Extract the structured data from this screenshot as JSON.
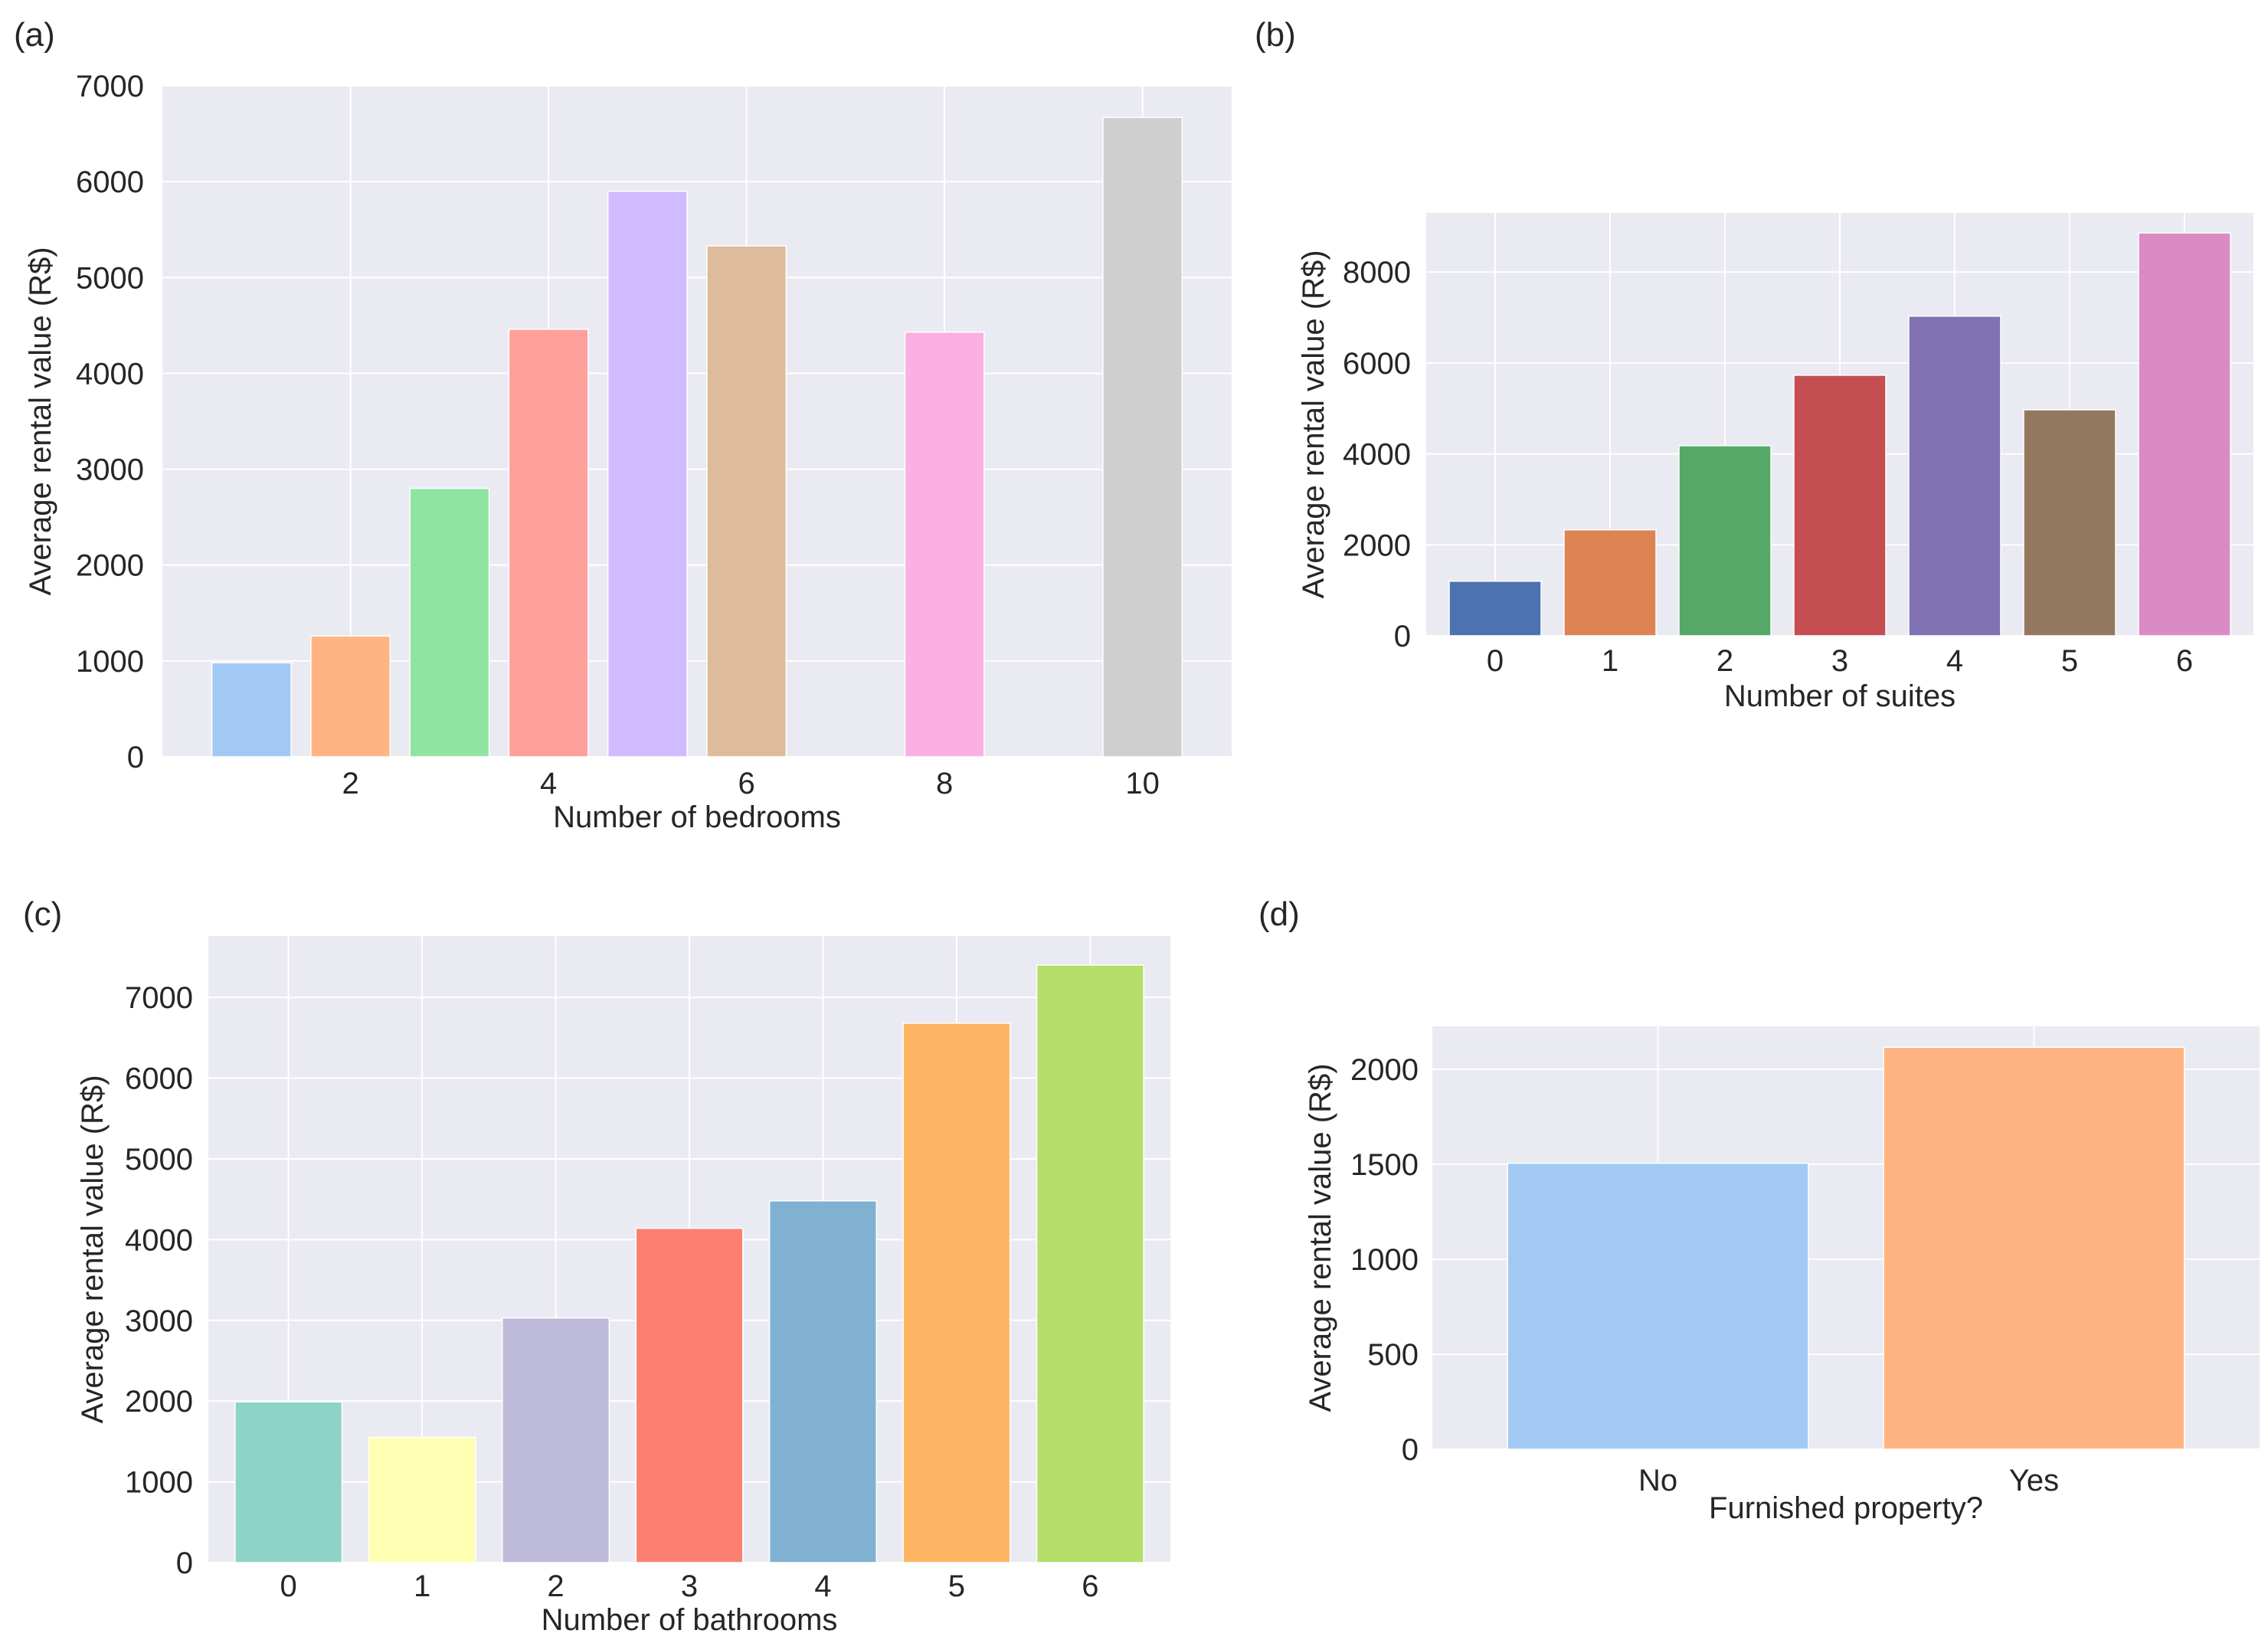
{
  "chart_data": [
    {
      "panel": "(a)",
      "type": "bar",
      "x": [
        1,
        2,
        3,
        4,
        5,
        6,
        8,
        10
      ],
      "values": [
        980,
        1260,
        2800,
        4460,
        5900,
        5330,
        4430,
        6670
      ],
      "colors": [
        "#a1c9f4",
        "#ffb482",
        "#8de5a1",
        "#ff9f9b",
        "#d0bbff",
        "#debb9b",
        "#fab0e4",
        "#cfcfcf"
      ],
      "xticks": [
        2,
        4,
        6,
        8,
        10
      ],
      "yticks": [
        0,
        1000,
        2000,
        3000,
        4000,
        5000,
        6000,
        7000
      ],
      "xlim": [
        0.1,
        10.9
      ],
      "ylim": [
        0,
        7000
      ],
      "xlabel": "Number of bedrooms",
      "ylabel": "Average rental value (R$)",
      "grid": true
    },
    {
      "panel": "(b)",
      "type": "bar",
      "categories": [
        "0",
        "1",
        "2",
        "3",
        "4",
        "5",
        "6"
      ],
      "values": [
        1200,
        2330,
        4180,
        5730,
        7030,
        4970,
        8860
      ],
      "colors": [
        "#4c72b0",
        "#dd8452",
        "#55a868",
        "#c44e52",
        "#8172b3",
        "#937860",
        "#da8bc3"
      ],
      "yticks": [
        0,
        2000,
        4000,
        6000,
        8000
      ],
      "ylim": [
        0,
        9300
      ],
      "xlabel": "Number of suites",
      "ylabel": "Average rental value (R$)",
      "grid": true
    },
    {
      "panel": "(c)",
      "type": "bar",
      "categories": [
        "0",
        "1",
        "2",
        "3",
        "4",
        "5",
        "6"
      ],
      "values": [
        1990,
        1550,
        3030,
        4140,
        4480,
        6680,
        7400
      ],
      "colors": [
        "#8dd3c7",
        "#ffffb3",
        "#bebada",
        "#fb8072",
        "#80b1d3",
        "#fdb462",
        "#b3de69"
      ],
      "yticks": [
        0,
        1000,
        2000,
        3000,
        4000,
        5000,
        6000,
        7000
      ],
      "ylim": [
        0,
        7760
      ],
      "xlabel": "Number of bathrooms",
      "ylabel": "Average rental value (R$)",
      "grid": true
    },
    {
      "panel": "(d)",
      "type": "bar",
      "categories": [
        "No",
        "Yes"
      ],
      "values": [
        1505,
        2115
      ],
      "colors": [
        "#a1c9f4",
        "#ffb482"
      ],
      "yticks": [
        0,
        500,
        1000,
        1500,
        2000
      ],
      "ylim": [
        0,
        2225
      ],
      "xlabel": "Furnished property?",
      "ylabel": "Average rental value (R$)",
      "grid": true
    }
  ]
}
